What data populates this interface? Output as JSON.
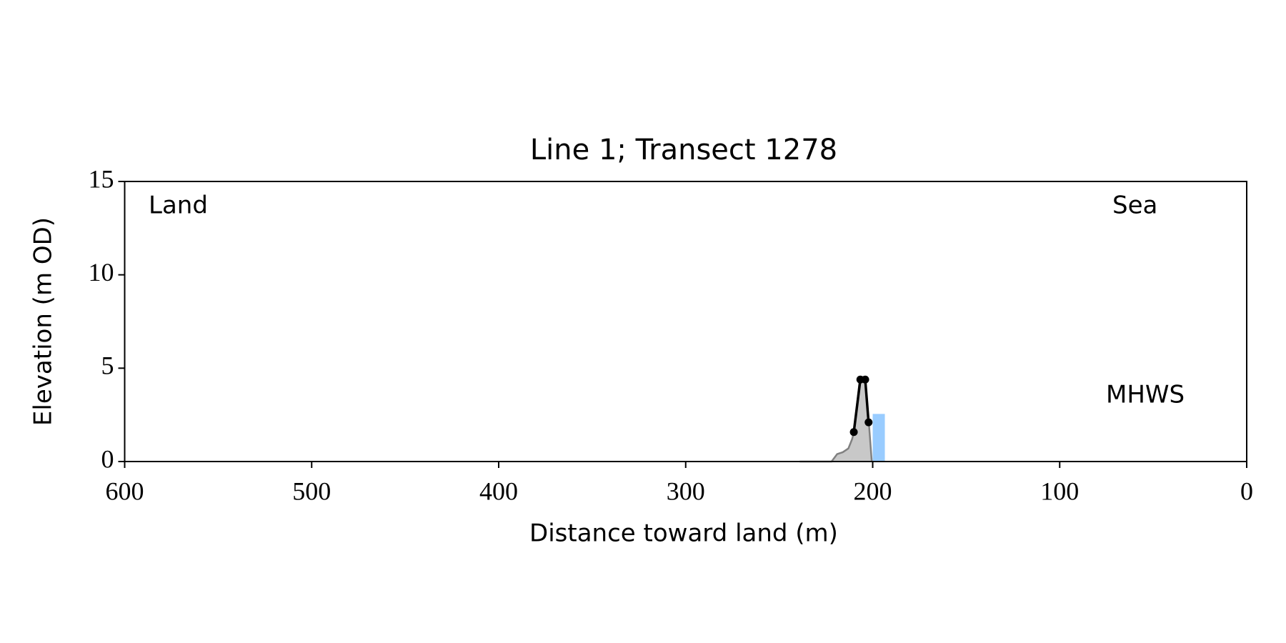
{
  "chart_data": {
    "type": "line",
    "title": "Line 1; Transect 1278",
    "xlabel": "Distance toward land (m)",
    "ylabel": "Elevation (m OD)",
    "xlim": [
      600,
      0
    ],
    "ylim": [
      0,
      15
    ],
    "xticks": [
      600,
      500,
      400,
      300,
      200,
      100,
      0
    ],
    "yticks": [
      0,
      5,
      10,
      15
    ],
    "annotations": [
      {
        "text": "Land"
      },
      {
        "text": "Sea"
      }
    ],
    "mhws": {
      "label": "MHWS",
      "label_color": "#6699cc",
      "color": "#99ccff",
      "x": [
        200,
        193.5
      ],
      "value": 2.55
    },
    "series": [
      {
        "color": "#808080",
        "fill": "#c8c8c8",
        "x": [
          239,
          222,
          219,
          216,
          213,
          211,
          210,
          207,
          204,
          202,
          200.5
        ],
        "values": [
          0,
          0,
          0.4,
          0.5,
          0.7,
          1.2,
          1.6,
          4.3,
          4.3,
          2.0,
          0
        ]
      },
      {
        "color": "#000000",
        "markers": true,
        "x": [
          210.1,
          206.6,
          204,
          202.2
        ],
        "values": [
          1.58,
          4.39,
          4.39,
          2.1
        ]
      }
    ]
  }
}
